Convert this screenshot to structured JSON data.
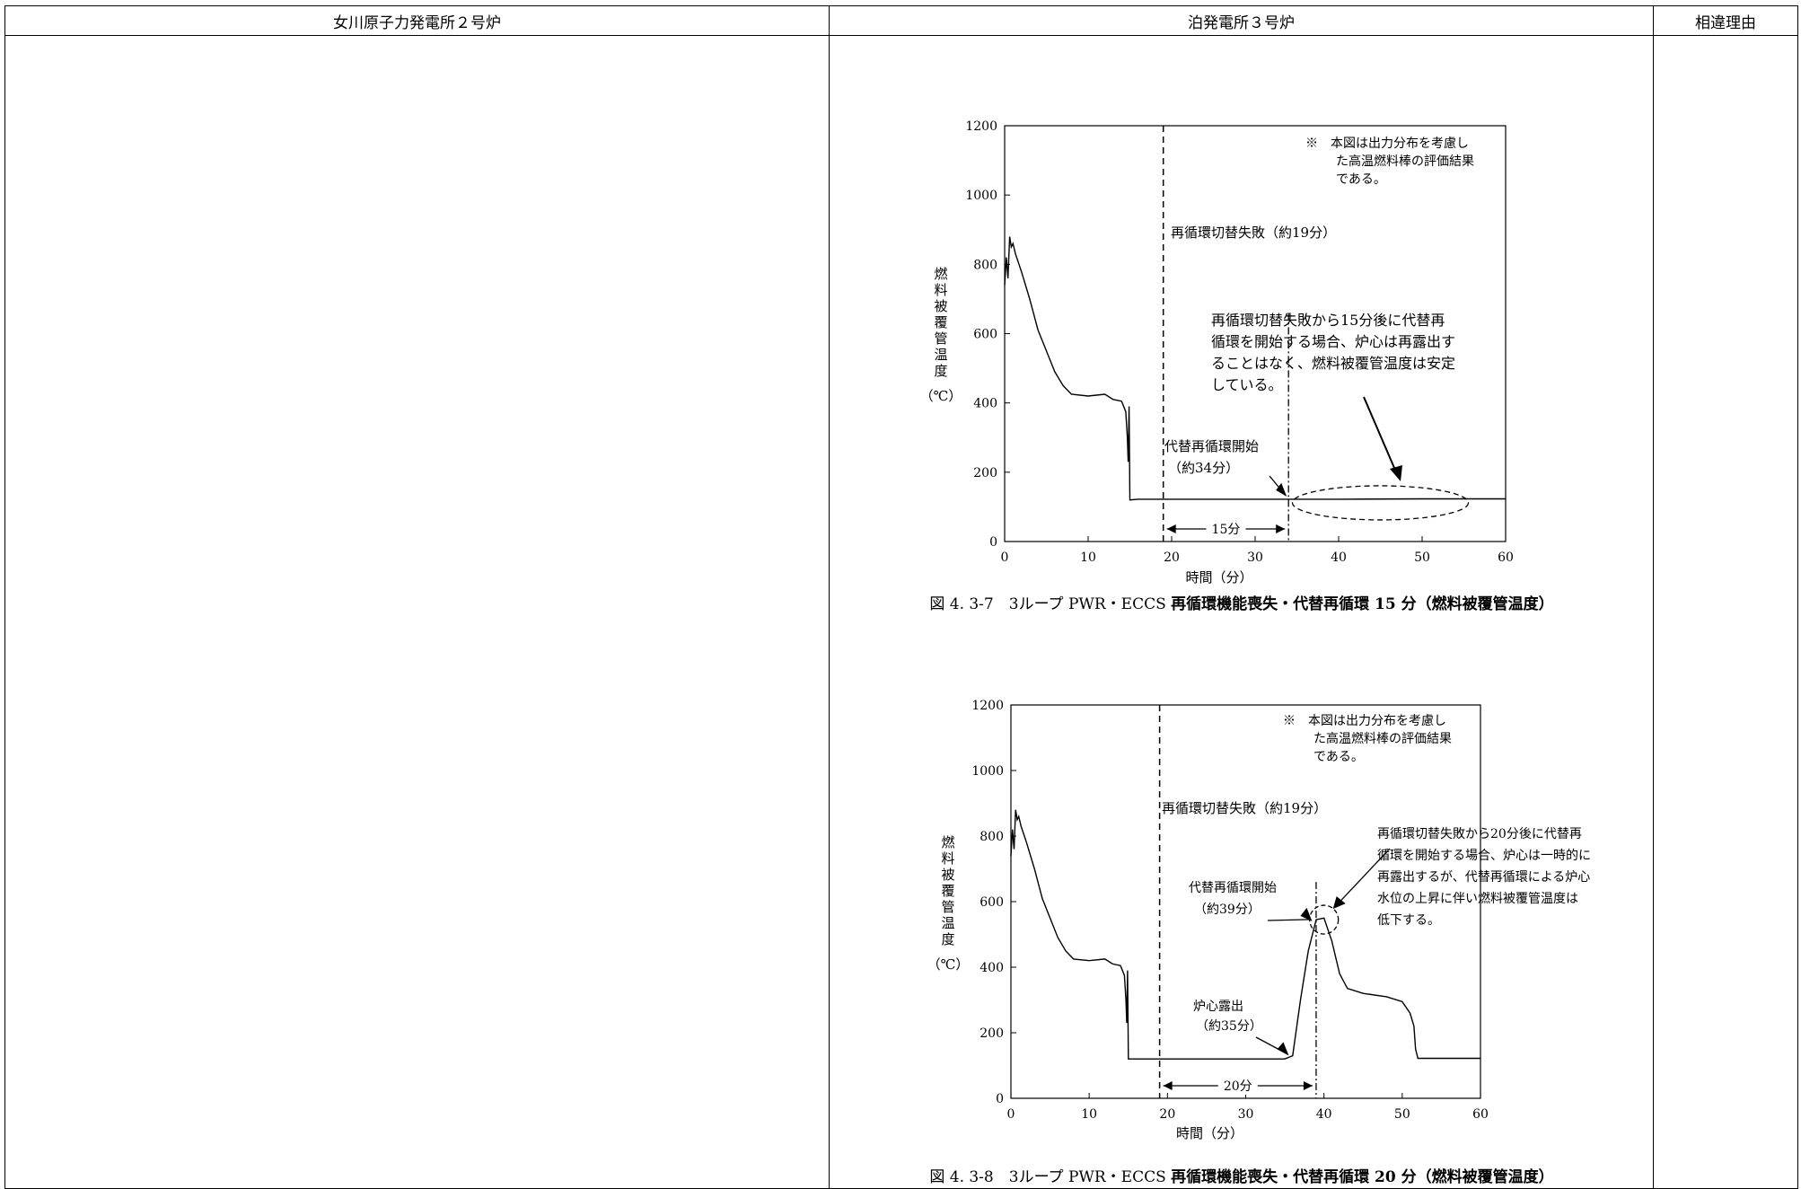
{
  "header": {
    "col_left": "女川原子力発電所２号炉",
    "col_mid": "泊発電所３号炉",
    "col_right": "相違理由"
  },
  "chart_data": [
    {
      "type": "line",
      "caption_prefix": "図 4. 3-7　3ループ PWR・ECCS ",
      "caption_main": "再循環機能喪失・代替再循環 15 分（燃料被覆管温度）",
      "xlabel": "時間（分）",
      "ylabel_chars": [
        "燃",
        "料",
        "被",
        "覆",
        "管",
        "温",
        "度"
      ],
      "ylabel_unit": "（℃）",
      "xlim": [
        0,
        60
      ],
      "ylim": [
        0,
        1200
      ],
      "xticks": [
        0,
        10,
        20,
        30,
        40,
        50,
        60
      ],
      "yticks": [
        0,
        200,
        400,
        600,
        800,
        1000,
        1200
      ],
      "note_lines": [
        "※　本図は出力分布を考慮し",
        "た高温燃料棒の評価結果",
        "である。"
      ],
      "annotations": {
        "fail": "再循環切替失敗（約19分）",
        "start_1": "代替再循環開始",
        "start_2": "（約34分）",
        "gap": "15分",
        "desc": [
          "再循環切替失敗から15分後に代替再",
          "循環を開始する場合、炉心は再露出す",
          "ることはなく、燃料被覆管温度は安定",
          "している。"
        ]
      },
      "vlines": [
        19,
        34
      ],
      "series": [
        {
          "points": [
            [
              0,
              740
            ],
            [
              0.2,
              820
            ],
            [
              0.4,
              760
            ],
            [
              0.6,
              880
            ],
            [
              0.8,
              850
            ],
            [
              1.0,
              860
            ],
            [
              1.3,
              830
            ],
            [
              2,
              780
            ],
            [
              3,
              700
            ],
            [
              4,
              610
            ],
            [
              5,
              550
            ],
            [
              6,
              490
            ],
            [
              7,
              450
            ],
            [
              8,
              425
            ],
            [
              10,
              420
            ],
            [
              12,
              425
            ],
            [
              13,
              410
            ],
            [
              14,
              405
            ],
            [
              14.5,
              375
            ],
            [
              14.7,
              300
            ],
            [
              14.8,
              230
            ],
            [
              14.9,
              390
            ],
            [
              15,
              120
            ],
            [
              16,
              122
            ],
            [
              20,
              122
            ],
            [
              30,
              122
            ],
            [
              34,
              122
            ],
            [
              40,
              122
            ],
            [
              50,
              123
            ],
            [
              60,
              123
            ]
          ]
        }
      ]
    },
    {
      "type": "line",
      "caption_prefix": "図 4. 3-8　3ループ PWR・ECCS ",
      "caption_main": "再循環機能喪失・代替再循環 20 分（燃料被覆管温度）",
      "xlabel": "時間（分）",
      "ylabel_chars": [
        "燃",
        "料",
        "被",
        "覆",
        "管",
        "温",
        "度"
      ],
      "ylabel_unit": "（℃）",
      "xlim": [
        0,
        60
      ],
      "ylim": [
        0,
        1200
      ],
      "xticks": [
        0,
        10,
        20,
        30,
        40,
        50,
        60
      ],
      "yticks": [
        0,
        200,
        400,
        600,
        800,
        1000,
        1200
      ],
      "note_lines": [
        "※　本図は出力分布を考慮し",
        "た高温燃料棒の評価結果",
        "である。"
      ],
      "annotations": {
        "fail": "再循環切替失敗（約19分）",
        "start_1": "代替再循環開始",
        "start_2": "（約39分）",
        "expose_1": "炉心露出",
        "expose_2": "（約35分）",
        "gap": "20分",
        "desc": [
          "再循環切替失敗から20分後に代替再",
          "循環を開始する場合、炉心は一時的に",
          "再露出するが、代替再循環による炉心",
          "水位の上昇に伴い燃料被覆管温度は",
          "低下する。"
        ]
      },
      "vlines": [
        19,
        39
      ],
      "series": [
        {
          "points": [
            [
              0,
              740
            ],
            [
              0.2,
              820
            ],
            [
              0.4,
              760
            ],
            [
              0.6,
              880
            ],
            [
              0.8,
              850
            ],
            [
              1.0,
              860
            ],
            [
              1.3,
              830
            ],
            [
              2,
              780
            ],
            [
              3,
              700
            ],
            [
              4,
              610
            ],
            [
              5,
              550
            ],
            [
              6,
              490
            ],
            [
              7,
              450
            ],
            [
              8,
              425
            ],
            [
              10,
              420
            ],
            [
              12,
              425
            ],
            [
              13,
              410
            ],
            [
              14,
              405
            ],
            [
              14.5,
              375
            ],
            [
              14.7,
              300
            ],
            [
              14.8,
              230
            ],
            [
              14.9,
              390
            ],
            [
              15,
              120
            ],
            [
              20,
              120
            ],
            [
              30,
              120
            ],
            [
              35,
              120
            ],
            [
              36,
              130
            ],
            [
              37,
              300
            ],
            [
              38,
              450
            ],
            [
              39,
              545
            ],
            [
              40,
              550
            ],
            [
              41,
              480
            ],
            [
              42,
              380
            ],
            [
              43,
              335
            ],
            [
              45,
              320
            ],
            [
              48,
              310
            ],
            [
              50,
              295
            ],
            [
              51,
              260
            ],
            [
              51.5,
              220
            ],
            [
              51.7,
              150
            ],
            [
              52,
              122
            ],
            [
              60,
              122
            ]
          ]
        }
      ]
    }
  ]
}
